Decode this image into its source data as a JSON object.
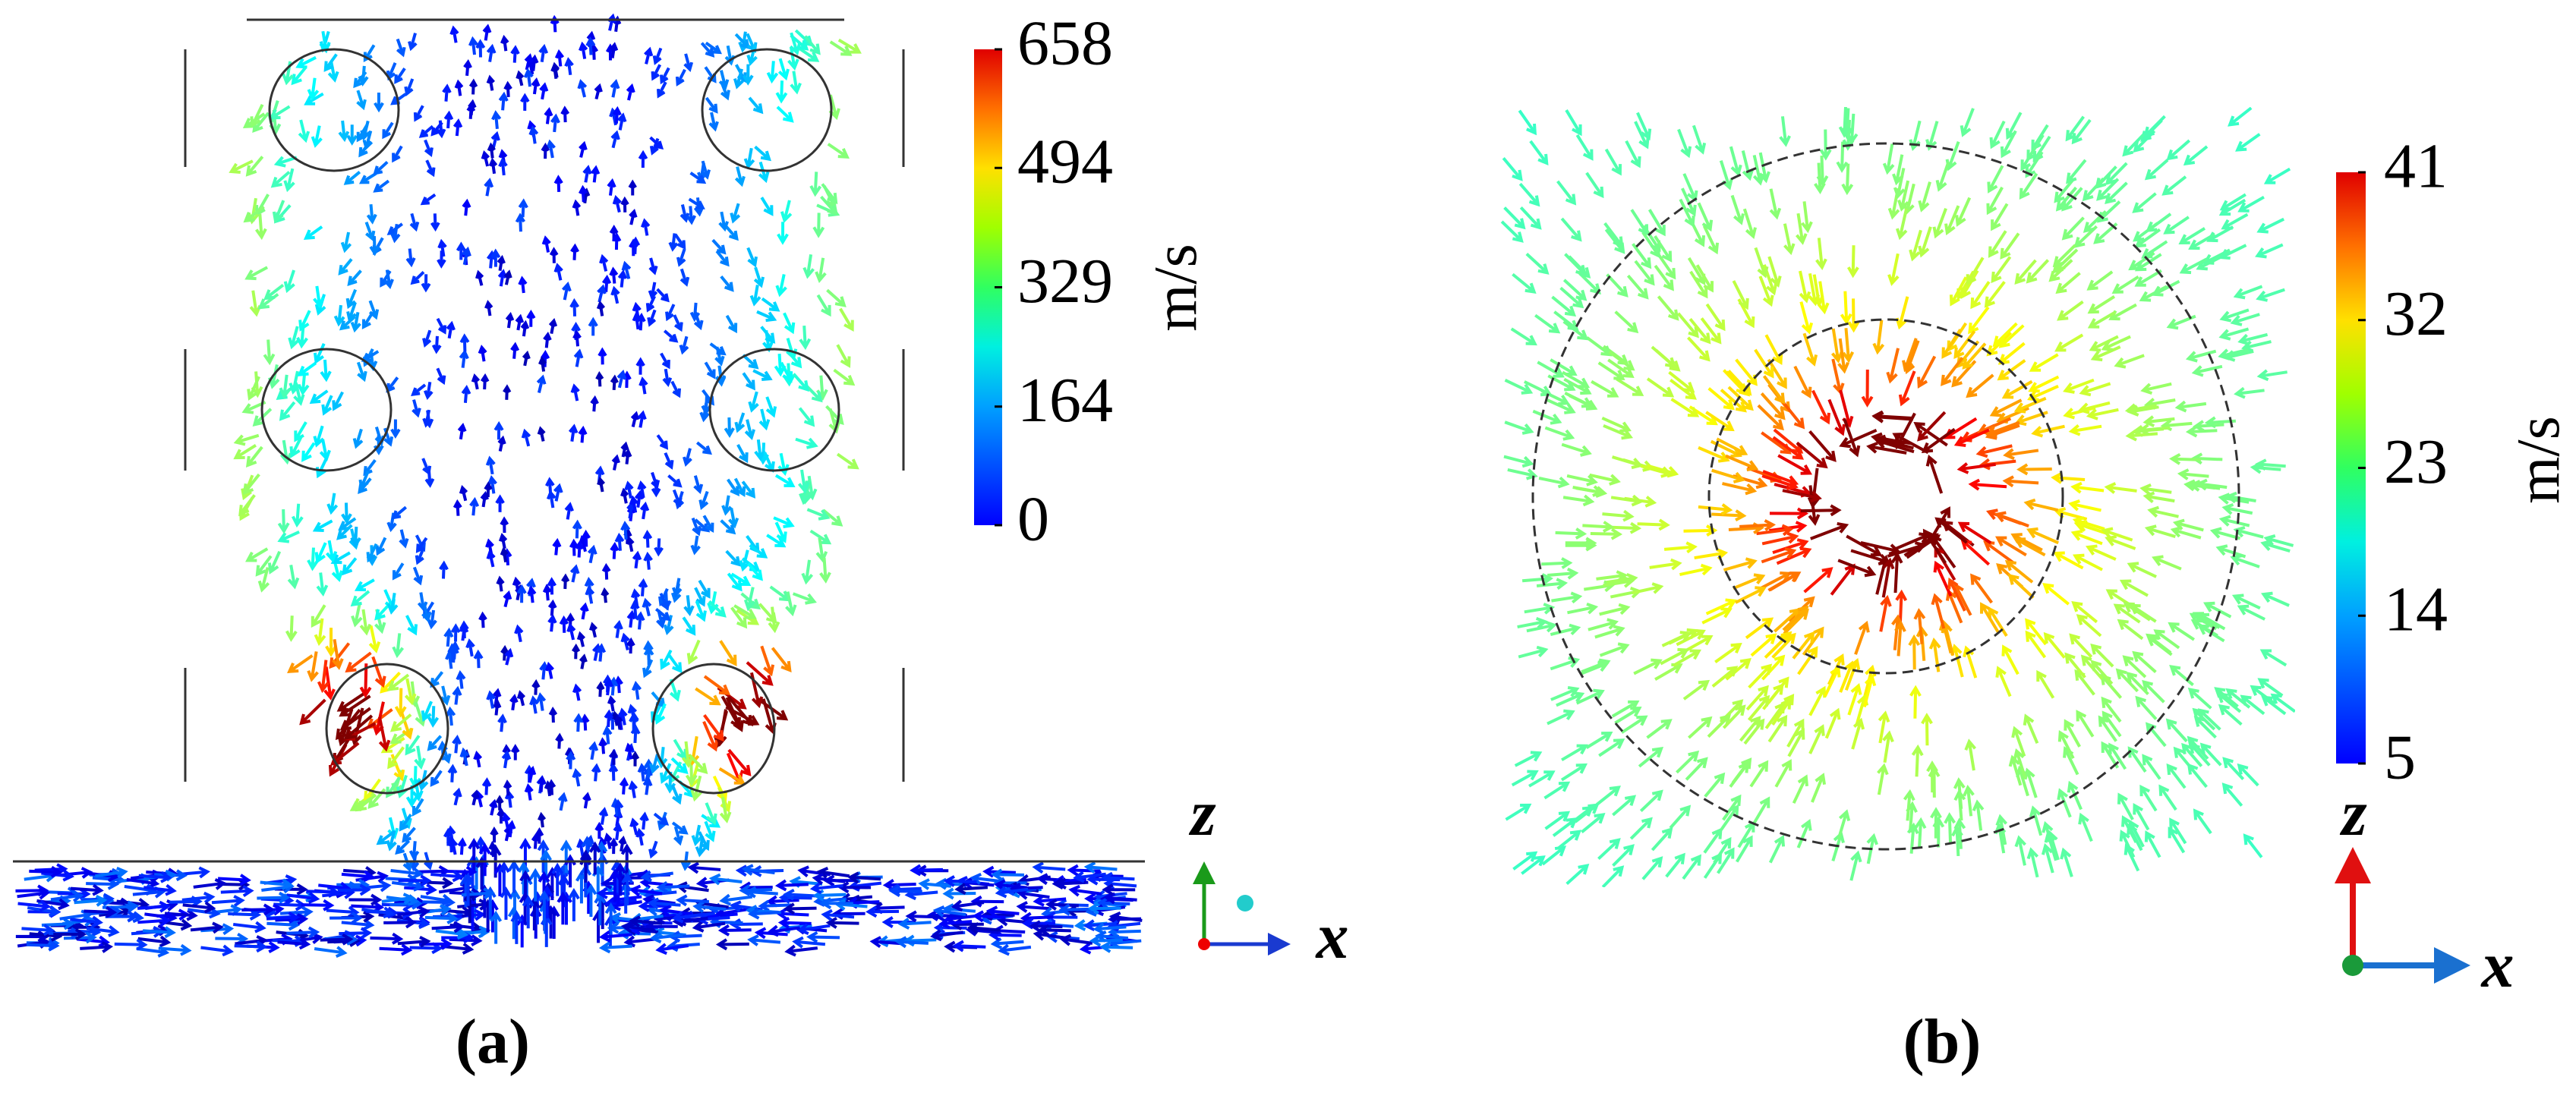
{
  "panels": [
    {
      "colorbar": {
        "ticks": [
          0,
          164,
          329,
          494,
          658
        ],
        "unit": "m/s"
      },
      "axes": {
        "vertical": "z",
        "horizontal": "x"
      },
      "caption": "(a)"
    },
    {
      "colorbar": {
        "ticks": [
          5,
          14,
          23,
          32,
          41
        ],
        "unit": "m/s"
      },
      "axes": {
        "vertical": "z",
        "horizontal": "x"
      },
      "caption": "(b)"
    }
  ]
}
